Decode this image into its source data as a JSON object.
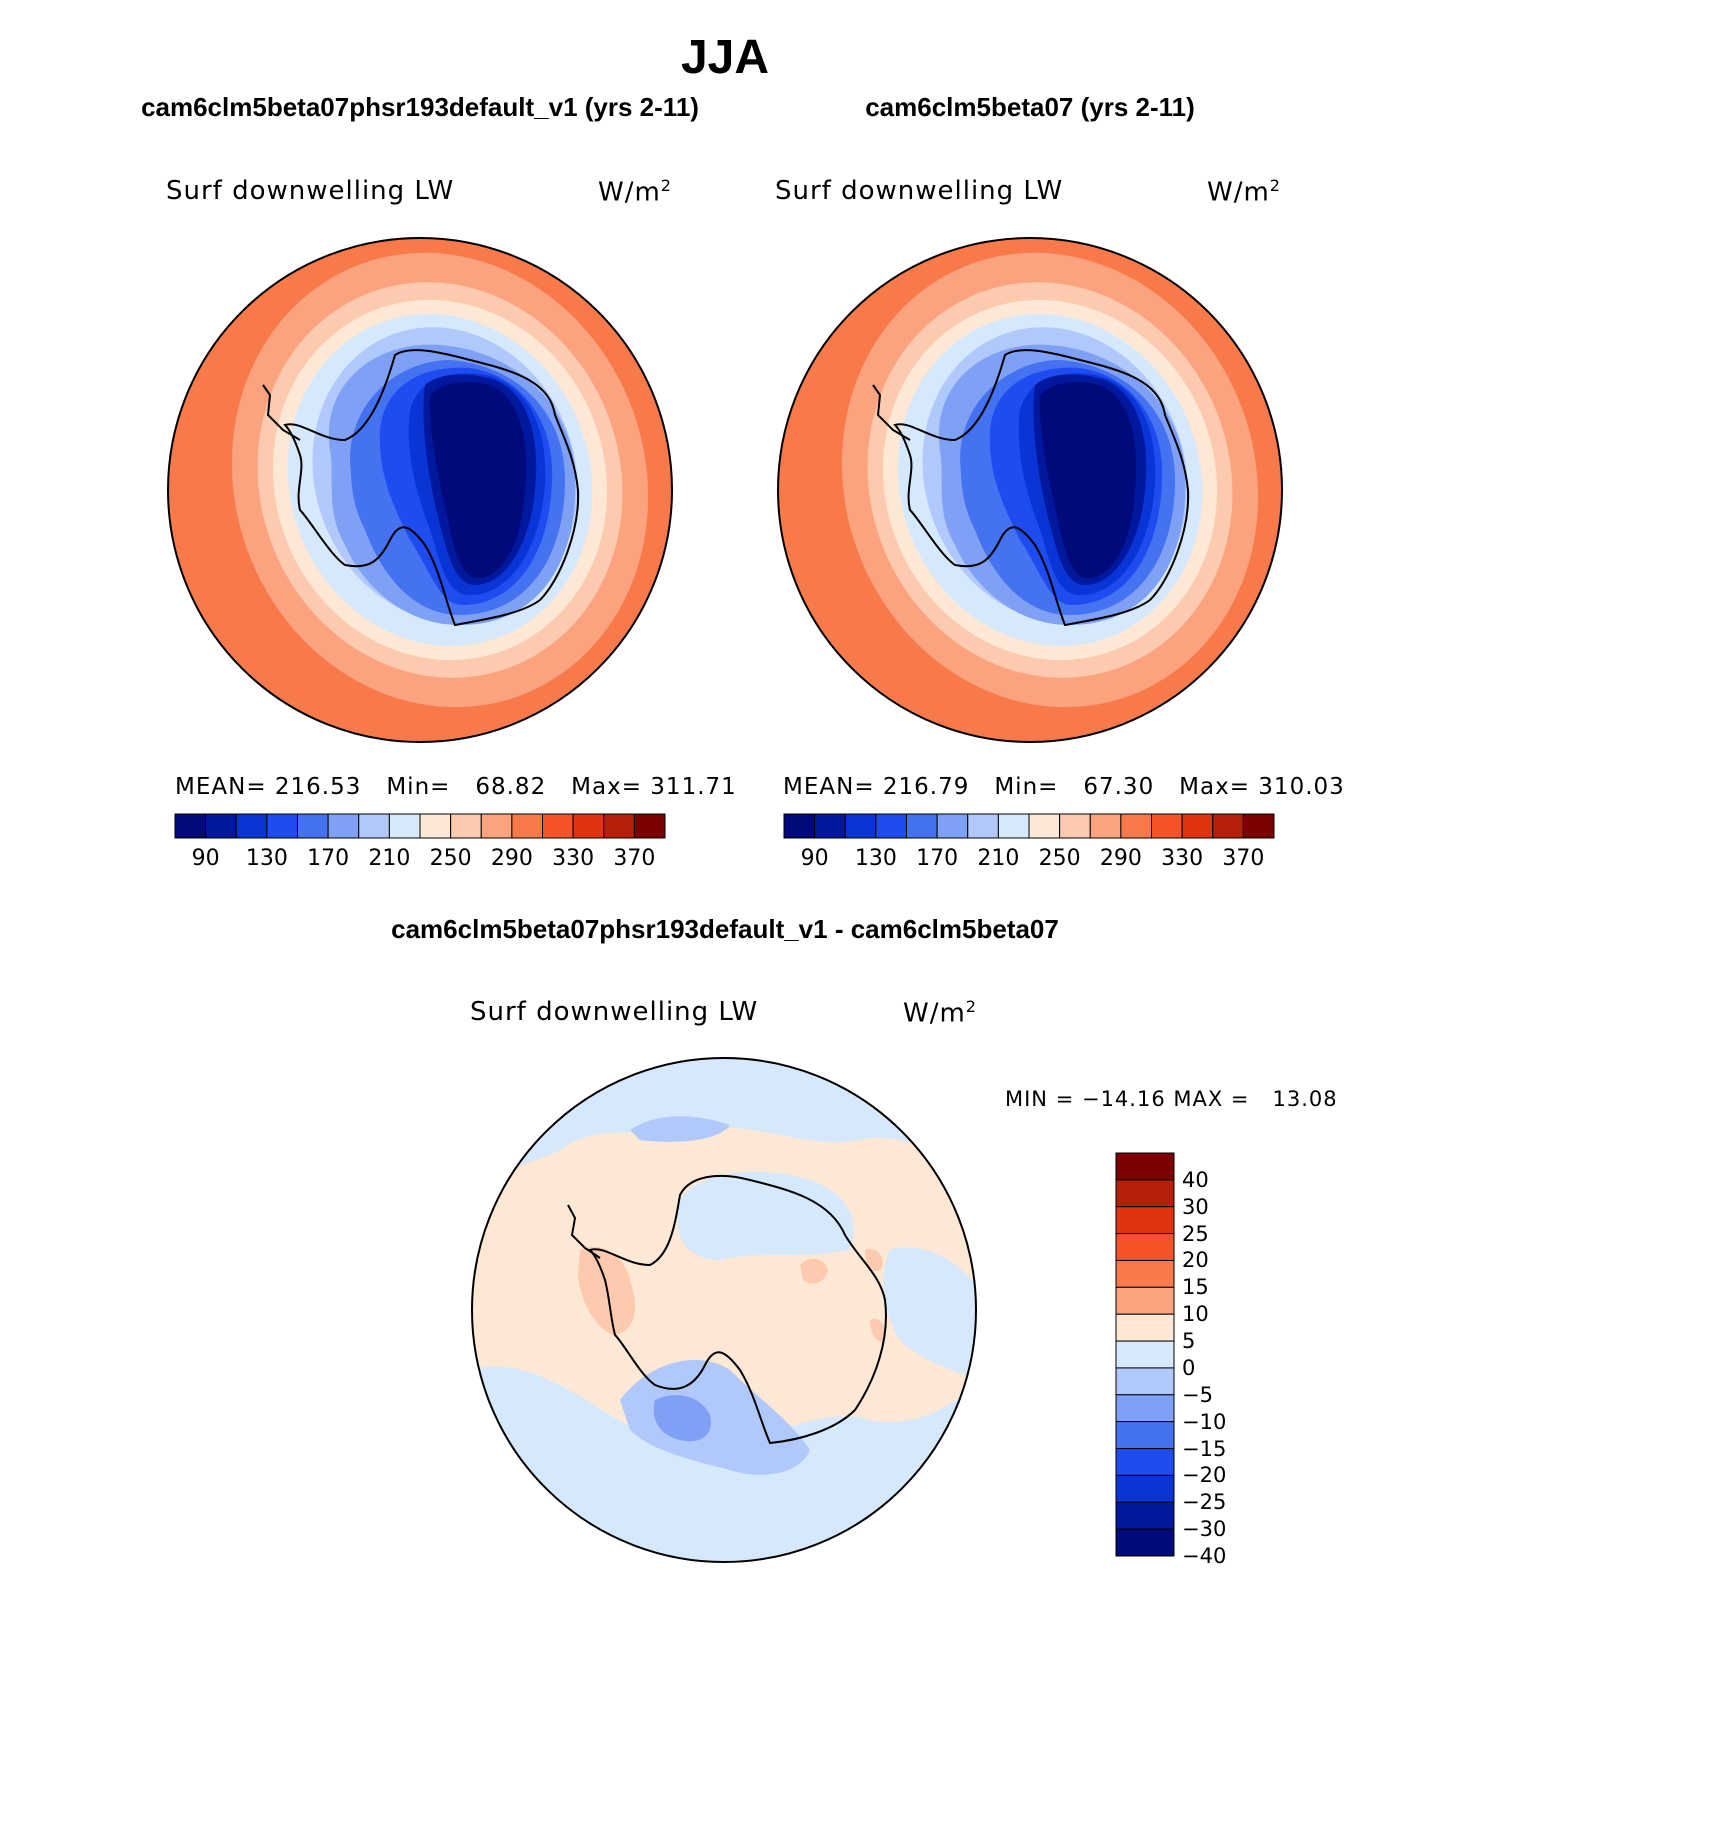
{
  "season": "JJA",
  "panels": [
    {
      "title": "cam6clm5beta07phsr193default_v1 (yrs 2-11)",
      "variable": "Surf downwelling LW",
      "units_base": "W/m",
      "units_exp": "2",
      "stats": {
        "mean_label": "MEAN=",
        "mean": "216.53",
        "min_label": "Min=",
        "min": "68.82",
        "max_label": "Max=",
        "max": "311.71"
      }
    },
    {
      "title": "cam6clm5beta07 (yrs 2-11)",
      "variable": "Surf downwelling LW",
      "units_base": "W/m",
      "units_exp": "2",
      "stats": {
        "mean_label": "MEAN=",
        "mean": "216.79",
        "min_label": "Min=",
        "min": "67.30",
        "max_label": "Max=",
        "max": "310.03"
      }
    }
  ],
  "diff": {
    "title": "cam6clm5beta07phsr193default_v1 - cam6clm5beta07",
    "variable": "Surf downwelling LW",
    "units_base": "W/m",
    "units_exp": "2",
    "minmax_label": "MIN = −14.16 MAX =   13.08"
  },
  "colorbar_abs": {
    "labels": [
      "90",
      "130",
      "170",
      "210",
      "250",
      "290",
      "330",
      "370"
    ],
    "colors": [
      "#000a7a",
      "#00189e",
      "#0a35d6",
      "#1e4cf0",
      "#4572f0",
      "#7ea0f5",
      "#b1c9fa",
      "#d6e8fc",
      "#fde7d5",
      "#fccaae",
      "#fba27f",
      "#f8794a",
      "#f5542a",
      "#df3312",
      "#b4200a",
      "#7d0000"
    ]
  },
  "colorbar_diff": {
    "labels": [
      "40",
      "30",
      "25",
      "20",
      "15",
      "10",
      "5",
      "0",
      "−5",
      "−10",
      "−15",
      "−20",
      "−25",
      "−30",
      "−40"
    ],
    "colors": [
      "#7d0000",
      "#b4200a",
      "#df3312",
      "#f5542a",
      "#f8794a",
      "#fba27f",
      "#fde7d5",
      "#d6e8fc",
      "#b1c9fa",
      "#7ea0f5",
      "#4572f0",
      "#1e4cf0",
      "#0a35d6",
      "#00189e",
      "#000a7a"
    ]
  }
}
